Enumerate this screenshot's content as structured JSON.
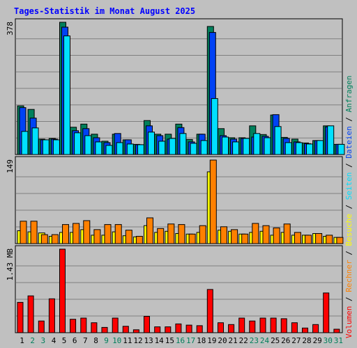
{
  "chart_data": {
    "type": "bar",
    "title": "Tages-Statistik im Monat August 2025",
    "days": [
      "1",
      "2",
      "3",
      "4",
      "5",
      "6",
      "7",
      "8",
      "9",
      "10",
      "11",
      "12",
      "13",
      "14",
      "15",
      "16",
      "17",
      "18",
      "19",
      "20",
      "21",
      "22",
      "23",
      "24",
      "25",
      "26",
      "27",
      "28",
      "29",
      "30",
      "31"
    ],
    "weekend_days": [
      "2",
      "3",
      "9",
      "10",
      "16",
      "17",
      "23",
      "24",
      "30",
      "31"
    ],
    "panels": [
      {
        "id": "requests",
        "max_label": "378",
        "ylim": [
          0,
          378
        ],
        "series": [
          {
            "name": "Anfragen",
            "color": "#00805c",
            "values": [
              139,
              129,
              44,
              46,
              378,
              78,
              87,
              58,
              38,
              58,
              42,
              29,
              97,
              58,
              58,
              87,
              43,
              58,
              366,
              74,
              48,
              48,
              82,
              57,
              113,
              49,
              44,
              33,
              40,
              82,
              29
            ]
          },
          {
            "name": "Dateien",
            "color": "#0042f5",
            "values": [
              134,
              104,
              42,
              44,
              364,
              68,
              74,
              48,
              34,
              60,
              42,
              28,
              82,
              54,
              44,
              77,
              36,
              58,
              349,
              54,
              44,
              46,
              50,
              52,
              114,
              46,
              36,
              31,
              40,
              79,
              29
            ]
          },
          {
            "name": "Seiten",
            "color": "#00e0ff",
            "values": [
              66,
              76,
              42,
              42,
              339,
              62,
              54,
              36,
              26,
              34,
              30,
              28,
              64,
              38,
              46,
              60,
              32,
              40,
              160,
              50,
              36,
              46,
              60,
              48,
              80,
              34,
              34,
              30,
              40,
              82,
              29
            ]
          }
        ]
      },
      {
        "id": "visits",
        "max_label": "149",
        "ylim": [
          0,
          149
        ],
        "series": [
          {
            "name": "Besuche",
            "color": "#ffff00",
            "values": [
              23,
              21,
              19,
              13,
              20,
              20,
              25,
              15,
              15,
              21,
              14,
              12,
              32,
              20,
              22,
              18,
              17,
              20,
              128,
              24,
              22,
              17,
              20,
              22,
              15,
              20,
              15,
              15,
              18,
              13,
              11
            ]
          },
          {
            "name": "Rechner",
            "color": "#ff8000",
            "values": [
              40,
              40,
              16,
              16,
              34,
              36,
              41,
              25,
              34,
              34,
              24,
              13,
              46,
              27,
              35,
              34,
              17,
              32,
              149,
              30,
              25,
              17,
              36,
              32,
              28,
              35,
              20,
              15,
              18,
              15,
              11
            ]
          }
        ]
      },
      {
        "id": "volume",
        "max_label": "1.43 MB",
        "ylim": [
          0,
          1.43
        ],
        "series": [
          {
            "name": "Volumen",
            "color": "#ff0000",
            "values": [
              0.52,
              0.63,
              0.2,
              0.58,
              1.43,
              0.23,
              0.25,
              0.17,
              0.09,
              0.25,
              0.11,
              0.05,
              0.28,
              0.1,
              0.1,
              0.15,
              0.13,
              0.12,
              0.74,
              0.17,
              0.14,
              0.25,
              0.2,
              0.25,
              0.25,
              0.24,
              0.17,
              0.08,
              0.14,
              0.68,
              0.06
            ]
          }
        ]
      }
    ],
    "right_label": [
      {
        "text": "Volumen",
        "color": "#ff0000"
      },
      {
        "text": " / ",
        "color": "#000000"
      },
      {
        "text": "Rechner",
        "color": "#ff8000"
      },
      {
        "text": " / ",
        "color": "#000000"
      },
      {
        "text": "Besuche",
        "color": "#ffff00"
      },
      {
        "text": " / ",
        "color": "#000000"
      },
      {
        "text": "Seiten",
        "color": "#00e0ff"
      },
      {
        "text": " / ",
        "color": "#000000"
      },
      {
        "text": "Dateien",
        "color": "#0042f5"
      },
      {
        "text": " / ",
        "color": "#000000"
      },
      {
        "text": "Anfragen",
        "color": "#00805c"
      }
    ],
    "colors": {
      "background": "#c0c0c0",
      "title": "#0000ff",
      "weekday_tick": "#000000",
      "weekend_tick": "#00805c",
      "grid": "#808080"
    }
  }
}
